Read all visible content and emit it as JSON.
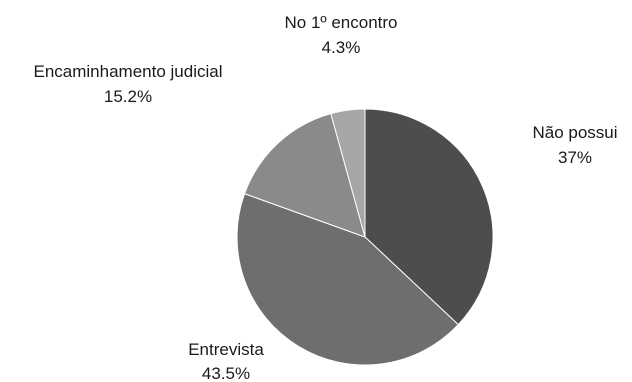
{
  "chart_data": {
    "type": "pie",
    "start": "12 o'clock",
    "direction": "clockwise",
    "slices": [
      {
        "label": "Não possui",
        "value_label": "37%",
        "value": 37.0,
        "color": "#4d4d4d"
      },
      {
        "label": "Entrevista",
        "value_label": "43.5%",
        "value": 43.5,
        "color": "#6e6e6e"
      },
      {
        "label": "Encaminhamento judicial",
        "value_label": "15.2%",
        "value": 15.2,
        "color": "#8a8a8a"
      },
      {
        "label": "No 1º encontro",
        "value_label": "4.3%",
        "value": 4.3,
        "color": "#a6a6a6"
      }
    ]
  }
}
